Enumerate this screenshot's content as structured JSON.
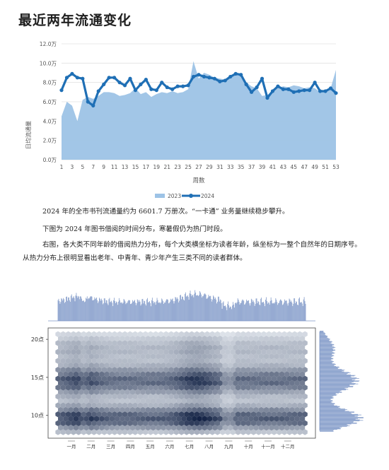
{
  "page": {
    "title": "最近两年流通变化",
    "paragraphs": [
      "2024 年的全市书刊流通量约为 6601.7 万册次。“一卡通” 业务量继续稳步攀升。",
      "下图为 2024 年图书借阅的时间分布，寒暑假仍为热门时段。",
      "右图，各大类不同年龄的借阅热力分布，每个大类横坐标为读者年龄，纵坐标为一整个自然年的日期序号。",
      "从热力分布上很明显看出老年、中青年、青少年产生三类不同的读者群体。"
    ]
  },
  "chart_data": [
    {
      "type": "line",
      "title": "",
      "xlabel": "周数",
      "ylabel": "日均流通量",
      "x": [
        1,
        2,
        3,
        4,
        5,
        6,
        7,
        8,
        9,
        10,
        11,
        12,
        13,
        14,
        15,
        16,
        17,
        18,
        19,
        20,
        21,
        22,
        23,
        24,
        25,
        26,
        27,
        28,
        29,
        30,
        31,
        32,
        33,
        34,
        35,
        36,
        37,
        38,
        39,
        40,
        41,
        42,
        43,
        44,
        45,
        46,
        47,
        48,
        49,
        50,
        51,
        52,
        53
      ],
      "x_ticks": [
        1,
        3,
        5,
        7,
        9,
        11,
        13,
        15,
        17,
        19,
        21,
        23,
        25,
        27,
        29,
        31,
        33,
        35,
        37,
        39,
        41,
        43,
        45,
        47,
        49,
        51,
        53
      ],
      "y_ticks": [
        "0.0万",
        "2.0万",
        "4.0万",
        "6.0万",
        "8.0万",
        "10.0万",
        "12.0万"
      ],
      "ylim": [
        0,
        12
      ],
      "y_unit": "万",
      "grid": true,
      "legend_position": "bottom",
      "series": [
        {
          "name": "2023",
          "style": "area",
          "color": "#9dc3e6",
          "values": [
            4.5,
            6.0,
            5.6,
            4.0,
            6.2,
            6.5,
            6.3,
            6.6,
            7.0,
            7.0,
            6.9,
            6.6,
            6.7,
            6.9,
            7.4,
            6.8,
            7.0,
            6.5,
            6.8,
            7.0,
            6.9,
            7.1,
            6.9,
            7.0,
            7.3,
            10.2,
            8.4,
            9.0,
            8.8,
            8.5,
            8.4,
            8.3,
            8.5,
            9.0,
            8.7,
            8.0,
            7.6,
            7.4,
            6.6,
            6.7,
            7.2,
            7.4,
            7.6,
            7.5,
            7.7,
            7.6,
            7.4,
            7.5,
            7.4,
            7.0,
            7.2,
            7.4,
            9.3
          ]
        },
        {
          "name": "2024",
          "style": "line",
          "color": "#1f6fb5",
          "values": [
            7.2,
            8.5,
            8.9,
            8.5,
            8.4,
            6.0,
            5.6,
            7.1,
            7.8,
            8.5,
            8.5,
            8.0,
            7.7,
            8.4,
            7.2,
            7.8,
            8.3,
            7.3,
            7.2,
            8.0,
            7.5,
            7.3,
            7.6,
            7.6,
            7.7,
            8.6,
            8.8,
            8.6,
            8.5,
            8.4,
            8.1,
            8.2,
            8.6,
            8.9,
            8.8,
            7.8,
            7.0,
            7.5,
            8.4,
            6.4,
            7.1,
            7.6,
            7.3,
            7.3,
            7.0,
            7.1,
            7.2,
            7.2,
            8.0,
            7.1,
            7.1,
            7.4,
            6.9
          ]
        }
      ]
    },
    {
      "type": "heatmap",
      "title": "",
      "x_tick_labels": [
        "一月",
        "二月",
        "三月",
        "四月",
        "五月",
        "六月",
        "七月",
        "八月",
        "九月",
        "十月",
        "十一月",
        "十二月"
      ],
      "y_tick_labels": [
        "10点",
        "15点",
        "20点"
      ],
      "y_tick_values": [
        10,
        15,
        20
      ],
      "ylim": [
        7,
        21.5
      ],
      "x_range_days": [
        1,
        366
      ],
      "color_scale": [
        "#f4f8fc",
        "#08183c"
      ],
      "marginal_color": "#7b95c6",
      "marginal_right_hours": [
        8,
        8.5,
        9,
        9.5,
        10,
        10.5,
        11,
        11.5,
        12,
        12.5,
        13,
        13.5,
        14,
        14.5,
        15,
        15.5,
        16,
        16.5,
        17,
        17.5,
        18,
        18.5,
        19,
        19.5,
        20,
        20.5,
        21
      ],
      "marginal_right_values": [
        0.15,
        0.5,
        0.9,
        1.0,
        0.9,
        0.75,
        0.55,
        0.4,
        0.35,
        0.45,
        0.6,
        0.75,
        0.85,
        0.9,
        0.95,
        0.9,
        0.75,
        0.55,
        0.4,
        0.35,
        0.3,
        0.28,
        0.25,
        0.2,
        0.15,
        0.1,
        0.05
      ]
    }
  ]
}
